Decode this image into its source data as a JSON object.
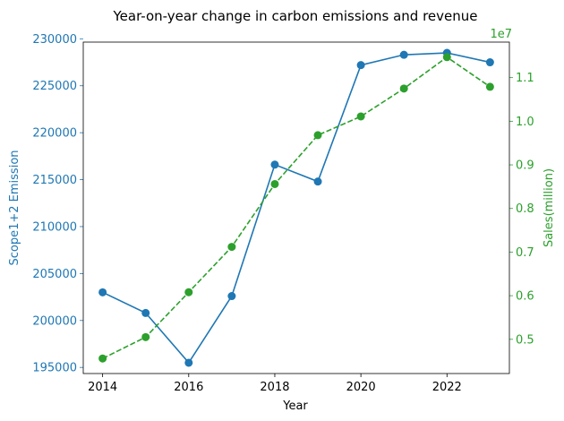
{
  "chart_data": {
    "type": "line",
    "title": "Year-on-year change in carbon emissions and revenue",
    "xlabel": "Year",
    "x": [
      2014,
      2015,
      2016,
      2017,
      2018,
      2019,
      2020,
      2021,
      2022,
      2023
    ],
    "xticks": [
      "2014",
      "2016",
      "2018",
      "2020",
      "2022"
    ],
    "xlim": [
      2013.55,
      2023.45
    ],
    "legend": "none",
    "grid": false,
    "series": [
      {
        "axis": "left",
        "color": "#1f77b4",
        "linestyle": "solid",
        "marker": "circle",
        "values": [
          203000,
          200800,
          195500,
          202600,
          216600,
          214800,
          227200,
          228300,
          228500,
          227500
        ]
      },
      {
        "axis": "right",
        "color": "#2ca02c",
        "linestyle": "dashed",
        "marker": "circle",
        "values": [
          4560000,
          5050000,
          6080000,
          7120000,
          8560000,
          9680000,
          10110000,
          10750000,
          11470000,
          10790000
        ]
      }
    ],
    "y_left": {
      "label": "Scope1+2 Emission",
      "color": "#1f77b4",
      "lim": [
        194350,
        229650
      ],
      "ticks": [
        195000,
        200000,
        205000,
        210000,
        215000,
        220000,
        225000,
        230000
      ],
      "tick_labels": [
        "195000",
        "200000",
        "205000",
        "210000",
        "215000",
        "220000",
        "225000",
        "230000"
      ]
    },
    "y_right": {
      "label": "Sales(million)",
      "color": "#2ca02c",
      "lim": [
        4215500,
        11814500
      ],
      "offset_text": "1e7",
      "ticks": [
        5000000,
        6000000,
        7000000,
        8000000,
        9000000,
        10000000,
        11000000
      ],
      "tick_labels": [
        "0.5",
        "0.6",
        "0.7",
        "0.8",
        "0.9",
        "1.0",
        "1.1"
      ]
    }
  }
}
